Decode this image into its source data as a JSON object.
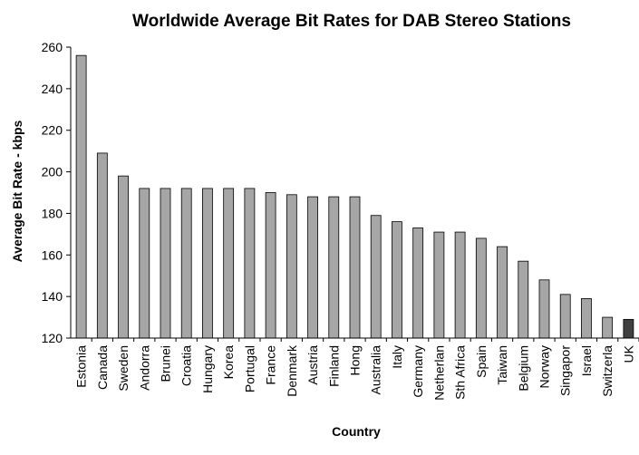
{
  "chart_data": {
    "type": "bar",
    "title": "Worldwide Average Bit Rates for DAB Stereo Stations",
    "xlabel": "Country",
    "ylabel": "Average Bit Rate - kbps",
    "ylim": [
      120,
      260
    ],
    "yticks": [
      120,
      140,
      160,
      180,
      200,
      220,
      240,
      260
    ],
    "grid": false,
    "legend": "none",
    "categories": [
      "Estonia",
      "Canada",
      "Sweden",
      "Andorra",
      "Brunei",
      "Croatia",
      "Hungary",
      "Korea",
      "Portugal",
      "France",
      "Denmark",
      "Austria",
      "Finland",
      "Hong",
      "Australia",
      "Italy",
      "Germany",
      "Netherlan",
      "Sth Africa",
      "Spain",
      "Taiwan",
      "Belgium",
      "Norway",
      "Singapor",
      "Israel",
      "Switzerla",
      "UK"
    ],
    "values": [
      256,
      209,
      198,
      192,
      192,
      192,
      192,
      192,
      192,
      190,
      189,
      188,
      188,
      188,
      179,
      176,
      173,
      171,
      171,
      168,
      164,
      157,
      148,
      141,
      139,
      130,
      129
    ],
    "bar_color": "#a6a6a6",
    "highlight_color": "#404040",
    "highlight_category": "UK"
  }
}
